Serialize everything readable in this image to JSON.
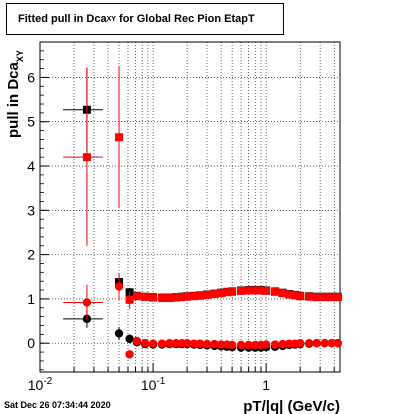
{
  "chart_data": {
    "type": "scatter",
    "title_main": "Fitted pull in Dca",
    "title_sub": "XY",
    "title_tail": " for Global Rec Pion EtapT",
    "xlabel": "pT/|q| (GeV/c)",
    "ylabel_main": "pull in Dca",
    "ylabel_sub": "XY",
    "x_scale": "log",
    "xlim": [
      0.01,
      4.5
    ],
    "ylim": [
      -0.65,
      6.8
    ],
    "grid": true,
    "x_ticks": [
      {
        "value": 0.01,
        "base": "10",
        "exp": "-2"
      },
      {
        "value": 0.1,
        "base": "10",
        "exp": "-1"
      },
      {
        "value": 1,
        "base": "1",
        "exp": ""
      }
    ],
    "y_ticks": [
      0,
      1,
      2,
      3,
      4,
      5,
      6
    ],
    "series": [
      {
        "color": "#000000",
        "marker": "square",
        "points": [
          [
            0.026,
            5.27,
            0.01,
            0.95
          ],
          [
            0.05,
            1.38,
            0.003,
            0.2
          ],
          [
            0.062,
            1.15,
            0.002,
            0.1
          ],
          [
            0.072,
            1.07,
            0,
            0
          ],
          [
            0.085,
            1.05,
            0,
            0
          ],
          [
            0.1,
            1.04,
            0,
            0
          ],
          [
            0.12,
            1.03,
            0,
            0
          ],
          [
            0.14,
            1.03,
            0,
            0
          ],
          [
            0.16,
            1.04,
            0,
            0
          ],
          [
            0.18,
            1.05,
            0,
            0
          ],
          [
            0.2,
            1.06,
            0,
            0
          ],
          [
            0.23,
            1.07,
            0,
            0
          ],
          [
            0.26,
            1.08,
            0,
            0
          ],
          [
            0.3,
            1.1,
            0,
            0
          ],
          [
            0.35,
            1.12,
            0,
            0
          ],
          [
            0.4,
            1.14,
            0,
            0
          ],
          [
            0.45,
            1.16,
            0,
            0
          ],
          [
            0.5,
            1.17,
            0,
            0
          ],
          [
            0.6,
            1.19,
            0,
            0
          ],
          [
            0.7,
            1.2,
            0,
            0
          ],
          [
            0.8,
            1.2,
            0,
            0
          ],
          [
            0.9,
            1.2,
            0,
            0
          ],
          [
            1.0,
            1.19,
            0,
            0
          ],
          [
            1.2,
            1.17,
            0,
            0
          ],
          [
            1.4,
            1.14,
            0,
            0
          ],
          [
            1.6,
            1.11,
            0,
            0
          ],
          [
            1.8,
            1.09,
            0,
            0
          ],
          [
            2.0,
            1.07,
            0,
            0
          ],
          [
            2.4,
            1.06,
            0,
            0
          ],
          [
            2.8,
            1.05,
            0,
            0
          ],
          [
            3.3,
            1.05,
            0,
            0
          ],
          [
            3.8,
            1.05,
            0,
            0
          ],
          [
            4.3,
            1.05,
            0,
            0
          ]
        ]
      },
      {
        "color": "#ff0000",
        "marker": "square",
        "points": [
          [
            0.026,
            4.2,
            0.01,
            2.0
          ],
          [
            0.05,
            4.65,
            0.003,
            1.6
          ],
          [
            0.062,
            0.98,
            0.002,
            0.2
          ],
          [
            0.072,
            1.06,
            0,
            0
          ],
          [
            0.085,
            1.05,
            0,
            0
          ],
          [
            0.1,
            1.03,
            0,
            0
          ],
          [
            0.12,
            1.02,
            0,
            0
          ],
          [
            0.14,
            1.02,
            0,
            0
          ],
          [
            0.16,
            1.03,
            0,
            0
          ],
          [
            0.18,
            1.04,
            0,
            0
          ],
          [
            0.2,
            1.05,
            0,
            0
          ],
          [
            0.23,
            1.06,
            0,
            0
          ],
          [
            0.26,
            1.07,
            0,
            0
          ],
          [
            0.3,
            1.09,
            0,
            0
          ],
          [
            0.35,
            1.11,
            0,
            0
          ],
          [
            0.4,
            1.13,
            0,
            0
          ],
          [
            0.45,
            1.15,
            0,
            0
          ],
          [
            0.5,
            1.16,
            0,
            0
          ],
          [
            0.6,
            1.18,
            0,
            0
          ],
          [
            0.7,
            1.19,
            0,
            0
          ],
          [
            0.8,
            1.19,
            0,
            0
          ],
          [
            0.9,
            1.19,
            0,
            0
          ],
          [
            1.0,
            1.18,
            0,
            0
          ],
          [
            1.2,
            1.16,
            0,
            0
          ],
          [
            1.4,
            1.13,
            0,
            0
          ],
          [
            1.6,
            1.1,
            0,
            0
          ],
          [
            1.8,
            1.08,
            0,
            0
          ],
          [
            2.0,
            1.06,
            0,
            0
          ],
          [
            2.4,
            1.05,
            0,
            0
          ],
          [
            2.8,
            1.04,
            0,
            0
          ],
          [
            3.3,
            1.04,
            0,
            0
          ],
          [
            3.8,
            1.04,
            0,
            0
          ],
          [
            4.3,
            1.04,
            0,
            0
          ]
        ]
      },
      {
        "color": "#000000",
        "marker": "circle",
        "points": [
          [
            0.026,
            0.55,
            0.01,
            0.2
          ],
          [
            0.05,
            0.22,
            0.003,
            0.15
          ],
          [
            0.062,
            0.1,
            0.002,
            0.1
          ],
          [
            0.072,
            0.02,
            0,
            0
          ],
          [
            0.085,
            -0.02,
            0,
            0
          ],
          [
            0.1,
            -0.03,
            0,
            0
          ],
          [
            0.12,
            -0.03,
            0,
            0
          ],
          [
            0.14,
            -0.02,
            0,
            0
          ],
          [
            0.16,
            -0.02,
            0,
            0
          ],
          [
            0.18,
            -0.02,
            0,
            0
          ],
          [
            0.2,
            -0.02,
            0,
            0
          ],
          [
            0.23,
            -0.03,
            0,
            0
          ],
          [
            0.26,
            -0.04,
            0,
            0
          ],
          [
            0.3,
            -0.05,
            0,
            0
          ],
          [
            0.35,
            -0.06,
            0,
            0
          ],
          [
            0.4,
            -0.07,
            0,
            0
          ],
          [
            0.45,
            -0.08,
            0,
            0
          ],
          [
            0.5,
            -0.09,
            0,
            0
          ],
          [
            0.6,
            -0.1,
            0,
            0
          ],
          [
            0.7,
            -0.1,
            0,
            0
          ],
          [
            0.8,
            -0.1,
            0,
            0
          ],
          [
            0.9,
            -0.1,
            0,
            0
          ],
          [
            1.0,
            -0.09,
            0,
            0
          ],
          [
            1.2,
            -0.08,
            0,
            0
          ],
          [
            1.4,
            -0.06,
            0,
            0
          ],
          [
            1.6,
            -0.04,
            0,
            0
          ],
          [
            1.8,
            -0.03,
            0,
            0
          ],
          [
            2.0,
            -0.02,
            0,
            0
          ],
          [
            2.4,
            -0.01,
            0,
            0
          ],
          [
            2.8,
            0,
            0,
            0
          ],
          [
            3.3,
            0,
            0,
            0
          ],
          [
            3.8,
            0,
            0,
            0
          ],
          [
            4.3,
            0,
            0,
            0
          ]
        ]
      },
      {
        "color": "#ff0000",
        "marker": "circle",
        "points": [
          [
            0.026,
            0.92,
            0.01,
            0.4
          ],
          [
            0.05,
            1.28,
            0.003,
            0.3
          ],
          [
            0.062,
            -0.25,
            0.002,
            0.08
          ],
          [
            0.072,
            0.05,
            0,
            0
          ],
          [
            0.085,
            0.0,
            0,
            0
          ],
          [
            0.1,
            -0.01,
            0,
            0
          ],
          [
            0.12,
            -0.01,
            0,
            0
          ],
          [
            0.14,
            0,
            0,
            0
          ],
          [
            0.16,
            0,
            0,
            0
          ],
          [
            0.18,
            0,
            0,
            0
          ],
          [
            0.2,
            0,
            0,
            0
          ],
          [
            0.23,
            -0.01,
            0,
            0
          ],
          [
            0.26,
            -0.01,
            0,
            0
          ],
          [
            0.3,
            -0.02,
            0,
            0
          ],
          [
            0.35,
            -0.02,
            0,
            0
          ],
          [
            0.4,
            -0.03,
            0,
            0
          ],
          [
            0.45,
            -0.03,
            0,
            0
          ],
          [
            0.5,
            -0.04,
            0,
            0
          ],
          [
            0.6,
            -0.04,
            0,
            0
          ],
          [
            0.7,
            -0.04,
            0,
            0
          ],
          [
            0.8,
            -0.04,
            0,
            0
          ],
          [
            0.9,
            -0.04,
            0,
            0
          ],
          [
            1.0,
            -0.03,
            0,
            0
          ],
          [
            1.2,
            -0.03,
            0,
            0
          ],
          [
            1.4,
            -0.02,
            0,
            0
          ],
          [
            1.6,
            -0.01,
            0,
            0
          ],
          [
            1.8,
            -0.01,
            0,
            0
          ],
          [
            2.0,
            0,
            0,
            0
          ],
          [
            2.4,
            0,
            0,
            0
          ],
          [
            2.8,
            0,
            0,
            0
          ],
          [
            3.3,
            0,
            0,
            0
          ],
          [
            3.8,
            0,
            0,
            0
          ],
          [
            4.3,
            0,
            0,
            0
          ]
        ]
      }
    ]
  },
  "timestamp": "Sat Dec 26 07:34:44 2020"
}
